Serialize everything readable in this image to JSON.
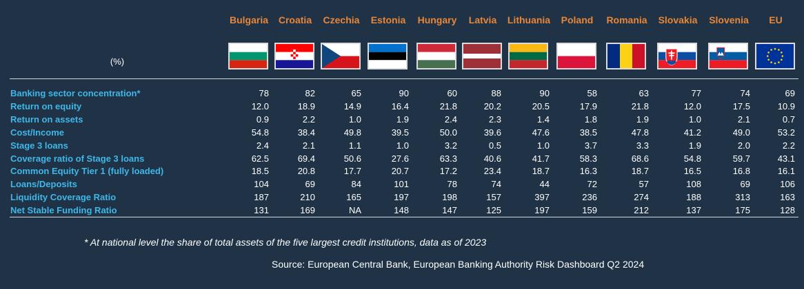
{
  "chart_data": {
    "type": "table",
    "unit_label": "(%)",
    "columns": [
      "Bulgaria",
      "Croatia",
      "Czechia",
      "Estonia",
      "Hungary",
      "Latvia",
      "Lithuania",
      "Poland",
      "Romania",
      "Slovakia",
      "Slovenia",
      "EU"
    ],
    "flags": [
      "bulgaria-flag",
      "croatia-flag",
      "czechia-flag",
      "estonia-flag",
      "hungary-flag",
      "latvia-flag",
      "lithuania-flag",
      "poland-flag",
      "romania-flag",
      "slovakia-flag",
      "slovenia-flag",
      "eu-flag"
    ],
    "rows": [
      {
        "label": "Banking sector concentration*",
        "values": [
          "78",
          "82",
          "65",
          "90",
          "60",
          "88",
          "90",
          "58",
          "63",
          "77",
          "74",
          "69"
        ]
      },
      {
        "label": "Return on equity",
        "values": [
          "12.0",
          "18.9",
          "14.9",
          "16.4",
          "21.8",
          "20.2",
          "20.5",
          "17.9",
          "21.8",
          "12.0",
          "17.5",
          "10.9"
        ]
      },
      {
        "label": "Return on assets",
        "values": [
          "0.9",
          "2.2",
          "1.0",
          "1.9",
          "2.4",
          "2.3",
          "1.4",
          "1.8",
          "1.9",
          "1.0",
          "2.1",
          "0.7"
        ]
      },
      {
        "label": "Cost/Income",
        "values": [
          "54.8",
          "38.4",
          "49.8",
          "39.5",
          "50.0",
          "39.6",
          "47.6",
          "38.5",
          "47.8",
          "41.2",
          "49.0",
          "53.2"
        ]
      },
      {
        "label": "Stage 3 loans",
        "values": [
          "2.4",
          "2.1",
          "1.1",
          "1.0",
          "3.2",
          "0.5",
          "1.0",
          "3.7",
          "3.3",
          "1.9",
          "2.0",
          "2.2"
        ]
      },
      {
        "label": "Coverage ratio of Stage 3 loans",
        "values": [
          "62.5",
          "69.4",
          "50.6",
          "27.6",
          "63.3",
          "40.6",
          "41.7",
          "58.3",
          "68.6",
          "54.8",
          "59.7",
          "43.1"
        ]
      },
      {
        "label": "Common Equity Tier 1 (fully loaded)",
        "values": [
          "18.5",
          "20.8",
          "17.7",
          "20.7",
          "17.2",
          "23.4",
          "18.7",
          "16.3",
          "18.7",
          "16.5",
          "16.8",
          "16.1"
        ]
      },
      {
        "label": "Loans/Deposits",
        "values": [
          "104",
          "69",
          "84",
          "101",
          "78",
          "74",
          "44",
          "72",
          "57",
          "108",
          "69",
          "106"
        ]
      },
      {
        "label": "Liquidity Coverage Ratio",
        "values": [
          "187",
          "210",
          "165",
          "197",
          "198",
          "157",
          "397",
          "236",
          "274",
          "188",
          "313",
          "163"
        ]
      },
      {
        "label": "Net Stable Funding Ratio",
        "values": [
          "131",
          "169",
          "NA",
          "148",
          "147",
          "125",
          "197",
          "159",
          "212",
          "137",
          "175",
          "128"
        ]
      }
    ],
    "footnote": "* At national level the share of total assets of the five largest credit institutions, data as of 2023",
    "source": "Source: European Central Bank, European Banking Authority Risk Dashboard Q2 2024"
  },
  "colors": {
    "background": "#1f3246",
    "header": "#e8873a",
    "row_label": "#3fb7e8",
    "value": "#ffffff"
  }
}
